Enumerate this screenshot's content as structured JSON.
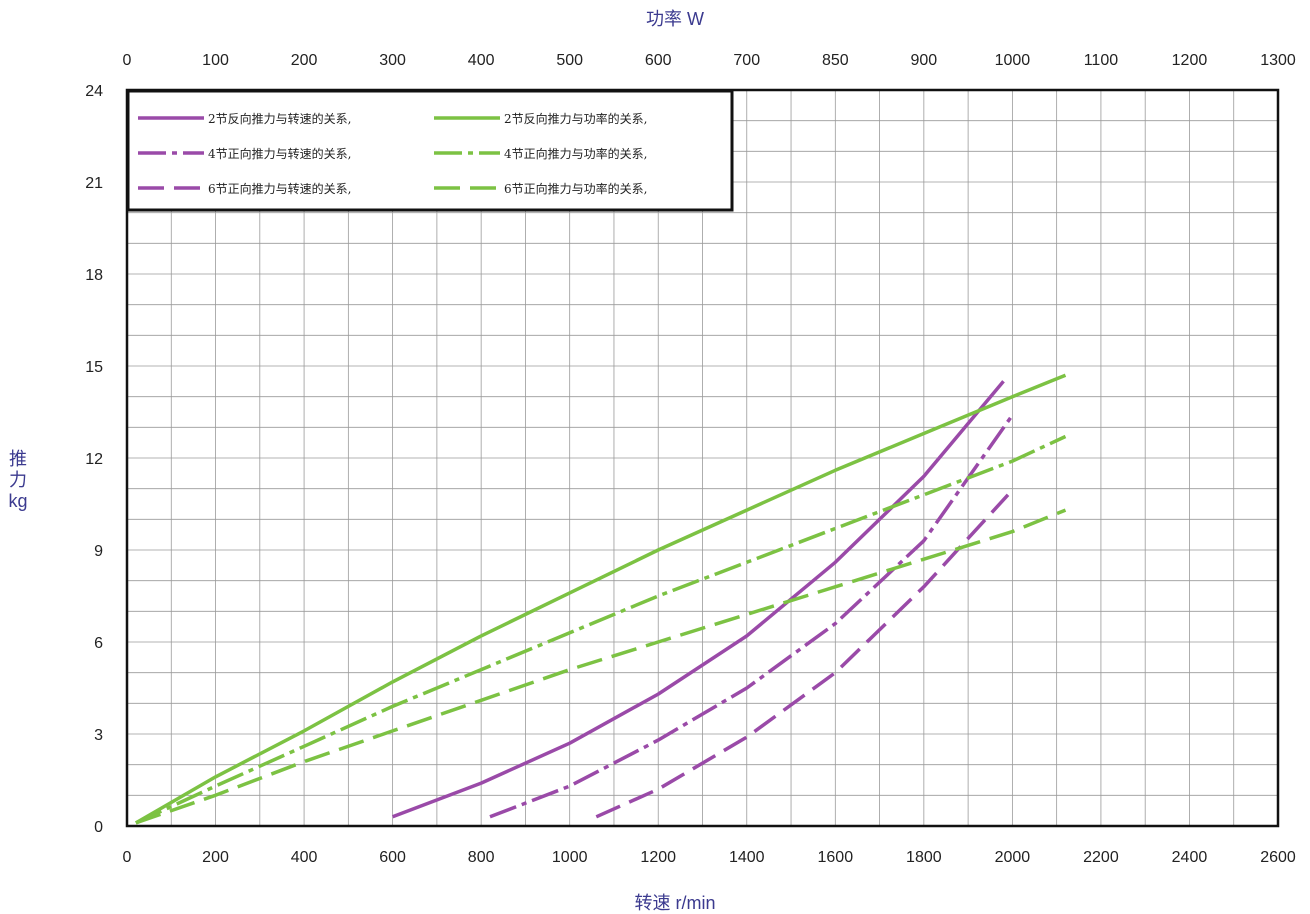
{
  "chart_data": {
    "type": "line",
    "title": "",
    "xlabel": "转速 r/min",
    "x2label": "功率 W",
    "ylabel_lines": [
      "推",
      "力",
      "kg"
    ],
    "xlim": [
      0,
      2600
    ],
    "ylim": [
      0,
      24
    ],
    "x_ticks": [
      0,
      200,
      400,
      600,
      800,
      1000,
      1200,
      1400,
      1600,
      1800,
      2000,
      2200,
      2400,
      2600
    ],
    "x_minor_ticks": [
      100,
      300,
      500,
      700,
      900,
      1100,
      1300,
      1500,
      1700,
      1900,
      2100,
      2300,
      2500
    ],
    "y_ticks": [
      0,
      3,
      6,
      9,
      12,
      15,
      18,
      21,
      24
    ],
    "y_minor_step": 1,
    "top_axis_ticks": [
      "0",
      "100",
      "200",
      "300",
      "400",
      "500",
      "600",
      "700",
      "850",
      "900",
      "1000",
      "1100",
      "1200",
      "1300"
    ],
    "grid": true,
    "legend_position": "top-left",
    "series": [
      {
        "name": "2节反向推力与转速的关系,",
        "color": "#9a4aa8",
        "dash": "solid",
        "x": [
          600,
          800,
          1000,
          1200,
          1400,
          1600,
          1800,
          1980
        ],
        "y": [
          0.3,
          1.4,
          2.7,
          4.3,
          6.2,
          8.6,
          11.4,
          14.5
        ]
      },
      {
        "name": "2节反向推力与功率的关系,",
        "color": "#7cc243",
        "dash": "solid",
        "x": [
          20,
          200,
          400,
          600,
          800,
          1000,
          1200,
          1400,
          1600,
          1800,
          2000,
          2120
        ],
        "y": [
          0.1,
          1.6,
          3.1,
          4.7,
          6.2,
          7.6,
          9.0,
          10.3,
          11.6,
          12.8,
          14.0,
          14.7
        ]
      },
      {
        "name": "4节正向推力与转速的关系,",
        "color": "#9a4aa8",
        "dash": "dashdot",
        "x": [
          820,
          1000,
          1200,
          1400,
          1600,
          1800,
          2000
        ],
        "y": [
          0.3,
          1.3,
          2.8,
          4.5,
          6.6,
          9.3,
          13.4
        ]
      },
      {
        "name": "4节正向推力与功率的关系,",
        "color": "#7cc243",
        "dash": "dashdot",
        "x": [
          20,
          200,
          400,
          600,
          800,
          1000,
          1200,
          1400,
          1600,
          1800,
          2000,
          2120
        ],
        "y": [
          0.1,
          1.3,
          2.6,
          3.9,
          5.1,
          6.3,
          7.5,
          8.6,
          9.7,
          10.8,
          11.9,
          12.7
        ]
      },
      {
        "name": "6节正向推力与转速的关系,",
        "color": "#9a4aa8",
        "dash": "dashed",
        "x": [
          1060,
          1200,
          1400,
          1600,
          1800,
          1990
        ],
        "y": [
          0.3,
          1.2,
          2.9,
          5.0,
          7.8,
          10.8
        ]
      },
      {
        "name": "6节正向推力与功率的关系,",
        "color": "#7cc243",
        "dash": "dashed",
        "x": [
          20,
          200,
          400,
          600,
          800,
          1000,
          1200,
          1400,
          1600,
          1800,
          2000,
          2120
        ],
        "y": [
          0.1,
          1.0,
          2.1,
          3.1,
          4.1,
          5.1,
          6.0,
          6.9,
          7.8,
          8.7,
          9.6,
          10.3
        ]
      }
    ]
  }
}
